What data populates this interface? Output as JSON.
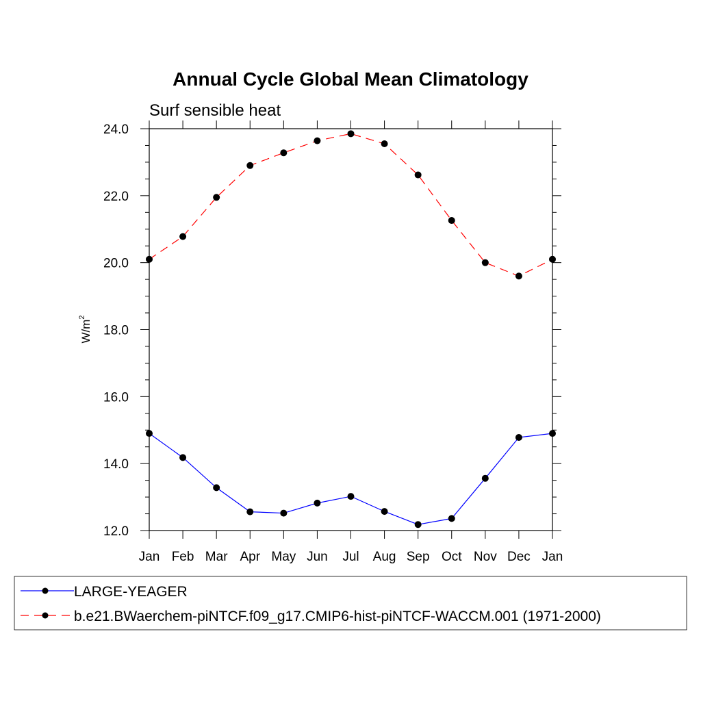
{
  "chart_data": {
    "type": "line",
    "title": "Annual Cycle Global Mean Climatology",
    "subtitle": "Surf sensible heat",
    "ylabel": "W/m",
    "ylabel_superscript": "2",
    "xlabel": "",
    "categories": [
      "Jan",
      "Feb",
      "Mar",
      "Apr",
      "May",
      "Jun",
      "Jul",
      "Aug",
      "Sep",
      "Oct",
      "Nov",
      "Dec",
      "Jan"
    ],
    "ylim": [
      12.0,
      24.0
    ],
    "yticks": [
      "12.0",
      "14.0",
      "16.0",
      "18.0",
      "20.0",
      "22.0",
      "24.0"
    ],
    "grid": false,
    "legend_position": "bottom",
    "series": [
      {
        "name": "LARGE-YEAGER",
        "color": "#0000ff",
        "line_style": "solid",
        "marker": "filled-circle",
        "values": [
          14.9,
          14.18,
          13.28,
          12.56,
          12.52,
          12.82,
          13.02,
          12.57,
          12.18,
          12.36,
          13.56,
          14.78,
          14.9
        ]
      },
      {
        "name": "b.e21.BWaerchem-piNTCF.f09_g17.CMIP6-hist-piNTCF-WACCM.001 (1971-2000)",
        "color": "#ff0000",
        "line_style": "dashed",
        "marker": "filled-circle",
        "values": [
          20.1,
          20.78,
          21.95,
          22.9,
          23.28,
          23.64,
          23.85,
          23.55,
          22.62,
          21.26,
          20.0,
          19.6,
          20.1
        ]
      }
    ]
  }
}
